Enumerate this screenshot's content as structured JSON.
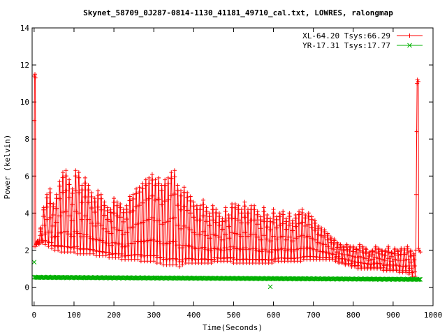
{
  "chart_data": {
    "type": "line",
    "title": "Skynet_58709_0J287-0814-1130_41181_49710_cal.txt, LOWRES, ralongmap",
    "xlabel": "Time(Seconds)",
    "ylabel": "Power (kelvin)",
    "xlim": [
      -5,
      1000
    ],
    "ylim": [
      -1,
      14
    ],
    "x_ticks": [
      0,
      100,
      200,
      300,
      400,
      500,
      600,
      700,
      800,
      900,
      1000
    ],
    "y_ticks": [
      0,
      2,
      4,
      6,
      8,
      10,
      12,
      14
    ],
    "grid": false,
    "legend_position": "top-right",
    "series": [
      {
        "name": "XL-64.20 Tsys:66.29",
        "color": "#ff0000",
        "marker": "plus",
        "oscillation": {
          "t_start": 5,
          "t_end": 955,
          "points_per_cycle": 12,
          "cycles": [
            [
              5,
              2.3,
              2.5
            ],
            [
              13,
              2.4,
              3.2
            ],
            [
              20,
              2.4,
              4.3
            ],
            [
              28,
              2.3,
              5.0
            ],
            [
              36,
              2.2,
              5.3
            ],
            [
              44,
              2.1,
              4.5
            ],
            [
              52,
              2.0,
              5.0
            ],
            [
              60,
              2.0,
              5.7
            ],
            [
              68,
              1.9,
              6.2
            ],
            [
              76,
              1.9,
              6.3
            ],
            [
              84,
              1.9,
              5.8
            ],
            [
              92,
              1.9,
              5.3
            ],
            [
              100,
              1.9,
              6.3
            ],
            [
              108,
              1.8,
              6.2
            ],
            [
              116,
              1.8,
              5.5
            ],
            [
              124,
              1.8,
              5.9
            ],
            [
              132,
              1.8,
              5.5
            ],
            [
              140,
              1.8,
              5.1
            ],
            [
              148,
              1.8,
              4.8
            ],
            [
              156,
              1.7,
              5.2
            ],
            [
              164,
              1.7,
              5.0
            ],
            [
              172,
              1.7,
              4.6
            ],
            [
              180,
              1.7,
              4.3
            ],
            [
              188,
              1.6,
              4.2
            ],
            [
              196,
              1.6,
              4.8
            ],
            [
              204,
              1.6,
              4.6
            ],
            [
              212,
              1.6,
              4.5
            ],
            [
              220,
              1.5,
              4.2
            ],
            [
              228,
              1.5,
              4.4
            ],
            [
              236,
              1.5,
              4.9
            ],
            [
              244,
              1.5,
              5.0
            ],
            [
              252,
              1.5,
              5.3
            ],
            [
              260,
              1.5,
              5.4
            ],
            [
              268,
              1.4,
              5.6
            ],
            [
              276,
              1.4,
              5.8
            ],
            [
              284,
              1.4,
              5.9
            ],
            [
              292,
              1.4,
              6.1
            ],
            [
              300,
              1.4,
              5.8
            ],
            [
              308,
              1.3,
              5.9
            ],
            [
              316,
              1.3,
              5.5
            ],
            [
              324,
              1.2,
              5.8
            ],
            [
              332,
              1.2,
              5.9
            ],
            [
              340,
              1.2,
              6.2
            ],
            [
              348,
              1.2,
              6.3
            ],
            [
              356,
              1.2,
              5.5
            ],
            [
              364,
              1.1,
              5.2
            ],
            [
              372,
              1.2,
              5.4
            ],
            [
              380,
              1.3,
              5.1
            ],
            [
              388,
              1.3,
              4.9
            ],
            [
              396,
              1.3,
              4.6
            ],
            [
              404,
              1.3,
              4.4
            ],
            [
              412,
              1.3,
              4.4
            ],
            [
              420,
              1.3,
              4.7
            ],
            [
              428,
              1.3,
              4.3
            ],
            [
              436,
              1.3,
              4.0
            ],
            [
              444,
              1.3,
              4.4
            ],
            [
              452,
              1.4,
              4.2
            ],
            [
              460,
              1.4,
              4.0
            ],
            [
              468,
              1.4,
              3.7
            ],
            [
              476,
              1.4,
              4.3
            ],
            [
              484,
              1.4,
              3.9
            ],
            [
              492,
              1.4,
              4.5
            ],
            [
              500,
              1.3,
              4.5
            ],
            [
              508,
              1.3,
              4.4
            ],
            [
              516,
              1.3,
              4.2
            ],
            [
              524,
              1.3,
              4.6
            ],
            [
              532,
              1.3,
              4.2
            ],
            [
              540,
              1.3,
              4.4
            ],
            [
              548,
              1.3,
              4.4
            ],
            [
              556,
              1.3,
              4.1
            ],
            [
              564,
              1.3,
              3.8
            ],
            [
              572,
              1.3,
              4.3
            ],
            [
              580,
              1.3,
              3.9
            ],
            [
              588,
              1.3,
              3.7
            ],
            [
              596,
              1.3,
              4.2
            ],
            [
              604,
              1.4,
              3.8
            ],
            [
              612,
              1.4,
              4.0
            ],
            [
              620,
              1.4,
              4.1
            ],
            [
              628,
              1.4,
              3.7
            ],
            [
              636,
              1.4,
              4.0
            ],
            [
              644,
              1.4,
              3.6
            ],
            [
              652,
              1.4,
              3.9
            ],
            [
              660,
              1.4,
              4.1
            ],
            [
              668,
              1.4,
              4.2
            ],
            [
              676,
              1.5,
              3.9
            ],
            [
              684,
              1.5,
              4.0
            ],
            [
              692,
              1.5,
              3.8
            ],
            [
              700,
              1.5,
              3.6
            ],
            [
              708,
              1.5,
              3.3
            ],
            [
              716,
              1.5,
              3.2
            ],
            [
              724,
              1.5,
              3.1
            ],
            [
              732,
              1.5,
              2.9
            ],
            [
              740,
              1.5,
              2.7
            ],
            [
              748,
              1.5,
              2.6
            ],
            [
              756,
              1.4,
              2.4
            ],
            [
              764,
              1.3,
              2.3
            ],
            [
              772,
              1.3,
              2.2
            ],
            [
              780,
              1.2,
              2.3
            ],
            [
              788,
              1.2,
              2.2
            ],
            [
              796,
              1.1,
              2.2
            ],
            [
              804,
              1.1,
              2.1
            ],
            [
              812,
              1.0,
              2.3
            ],
            [
              820,
              1.0,
              2.2
            ],
            [
              828,
              1.0,
              2.1
            ],
            [
              836,
              1.0,
              1.9
            ],
            [
              844,
              1.0,
              2.0
            ],
            [
              852,
              1.0,
              2.2
            ],
            [
              860,
              1.0,
              2.1
            ],
            [
              868,
              1.0,
              2.0
            ],
            [
              876,
              0.9,
              2.0
            ],
            [
              884,
              0.9,
              2.2
            ],
            [
              892,
              0.9,
              1.9
            ],
            [
              900,
              0.9,
              2.1
            ],
            [
              908,
              0.9,
              2.0
            ],
            [
              916,
              0.8,
              2.1
            ],
            [
              924,
              0.8,
              2.1
            ],
            [
              932,
              0.8,
              2.2
            ],
            [
              940,
              0.7,
              2.0
            ],
            [
              948,
              0.5,
              1.8
            ]
          ]
        },
        "trace": [
          [
            0,
            2.2
          ],
          [
            0.5,
            9.0
          ],
          [
            1,
            11.4
          ],
          [
            2,
            11.5
          ],
          [
            3,
            11.3
          ],
          [
            4,
            2.2
          ],
          [
            955,
            0.5
          ],
          [
            957,
            2.0
          ],
          [
            958,
            5.0
          ],
          [
            959,
            8.4
          ],
          [
            960,
            11.0
          ],
          [
            961,
            11.2
          ],
          [
            963,
            11.1
          ],
          [
            964,
            2.1
          ],
          [
            965,
            2.0
          ],
          [
            968,
            1.9
          ]
        ]
      },
      {
        "name": "YR-17.31 Tsys:17.77",
        "color": "#00b000",
        "marker": "cross",
        "baseline": {
          "x_start": 0,
          "x_end": 968,
          "step": 2,
          "start": 0.53,
          "end": 0.42,
          "wobble": 0.025
        },
        "outliers": [
          [
            0,
            1.35
          ],
          [
            592,
            0.02
          ]
        ]
      }
    ]
  }
}
